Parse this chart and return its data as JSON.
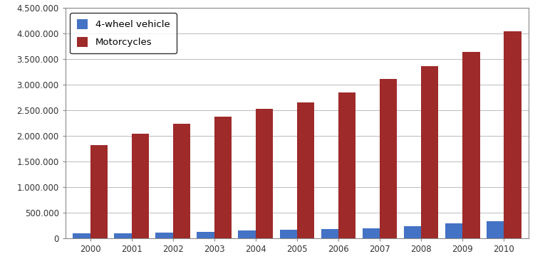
{
  "years": [
    2000,
    2001,
    2002,
    2003,
    2004,
    2005,
    2006,
    2007,
    2008,
    2009,
    2010
  ],
  "four_wheel": [
    100000,
    105000,
    110000,
    130000,
    155000,
    170000,
    185000,
    205000,
    245000,
    290000,
    340000
  ],
  "motorcycles": [
    1820000,
    2040000,
    2240000,
    2380000,
    2530000,
    2660000,
    2850000,
    3110000,
    3360000,
    3650000,
    4050000
  ],
  "four_wheel_color": "#4472C4",
  "motorcycle_color": "#9E2A2A",
  "legend_labels": [
    "4-wheel vehicle",
    "Motorcycles"
  ],
  "ylim": [
    0,
    4500000
  ],
  "yticks": [
    0,
    500000,
    1000000,
    1500000,
    2000000,
    2500000,
    3000000,
    3500000,
    4000000,
    4500000
  ],
  "ytick_labels": [
    "0",
    "500.000",
    "1.000.000",
    "1.500.000",
    "2.000.000",
    "2.500.000",
    "3.000.000",
    "3.500.000",
    "4.000.000",
    "4.500.000"
  ],
  "bar_width": 0.42,
  "grid_color": "#BBBBBB",
  "background_color": "#FFFFFF",
  "spine_color": "#888888",
  "tick_color": "#333333",
  "font_size": 8.5,
  "legend_fontsize": 9.5
}
